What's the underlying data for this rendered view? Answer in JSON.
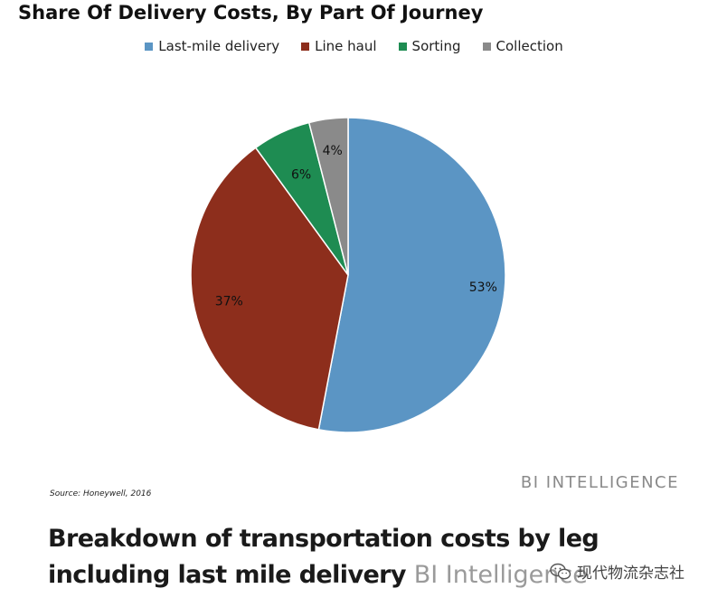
{
  "chart_data": {
    "type": "pie",
    "title": "Share Of Delivery Costs, By Part Of Journey",
    "legend_position": "top",
    "slices": [
      {
        "name": "Last-mile delivery",
        "value": 53,
        "label": "53%",
        "color": "#5b95c4"
      },
      {
        "name": "Line haul",
        "value": 37,
        "label": "37%",
        "color": "#8d2e1c"
      },
      {
        "name": "Sorting",
        "value": 6,
        "label": "6%",
        "color": "#1e8c52"
      },
      {
        "name": "Collection",
        "value": 4,
        "label": "4%",
        "color": "#8a8a8a"
      }
    ]
  },
  "source": "Source: Honeywell, 2016",
  "brand": "BI INTELLIGENCE",
  "caption": {
    "text": "Breakdown of transportation costs by leg including last mile delivery",
    "suffix": "BI Intelligence"
  },
  "watermark": {
    "icon": "wechat-icon",
    "text": "现代物流杂志社"
  }
}
